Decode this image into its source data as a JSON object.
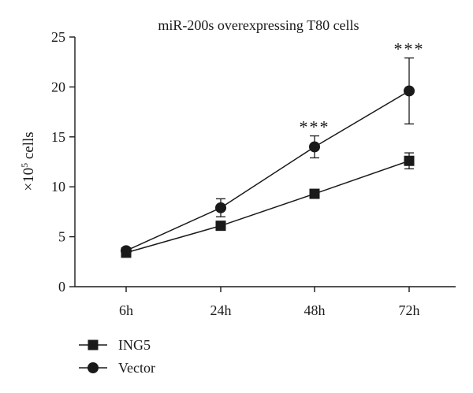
{
  "chart_data": {
    "type": "line",
    "title": "miR-200s overexpressing T80 cells",
    "ylabel": "×10^5 cells",
    "ylabel_parts": {
      "base": "×10",
      "exponent": "5",
      "unit": " cells"
    },
    "xlabel": "",
    "categories": [
      "6h",
      "24h",
      "48h",
      "72h"
    ],
    "ylim": [
      0,
      25
    ],
    "yticks": [
      0,
      5,
      10,
      15,
      20,
      25
    ],
    "grid": false,
    "legend_position": "bottom-left",
    "series": [
      {
        "name": "ING5",
        "marker": "square",
        "color": "#1a1a1a",
        "values": [
          3.4,
          6.1,
          9.3,
          12.6
        ],
        "errors": [
          0.3,
          0.4,
          0.4,
          0.8
        ]
      },
      {
        "name": "Vector",
        "marker": "circle",
        "color": "#1a1a1a",
        "values": [
          3.6,
          7.9,
          14.0,
          19.6
        ],
        "errors": [
          0.3,
          0.9,
          1.1,
          3.3
        ]
      }
    ],
    "annotations": [
      {
        "category": "48h",
        "text": "***"
      },
      {
        "category": "72h",
        "text": "***"
      }
    ]
  }
}
